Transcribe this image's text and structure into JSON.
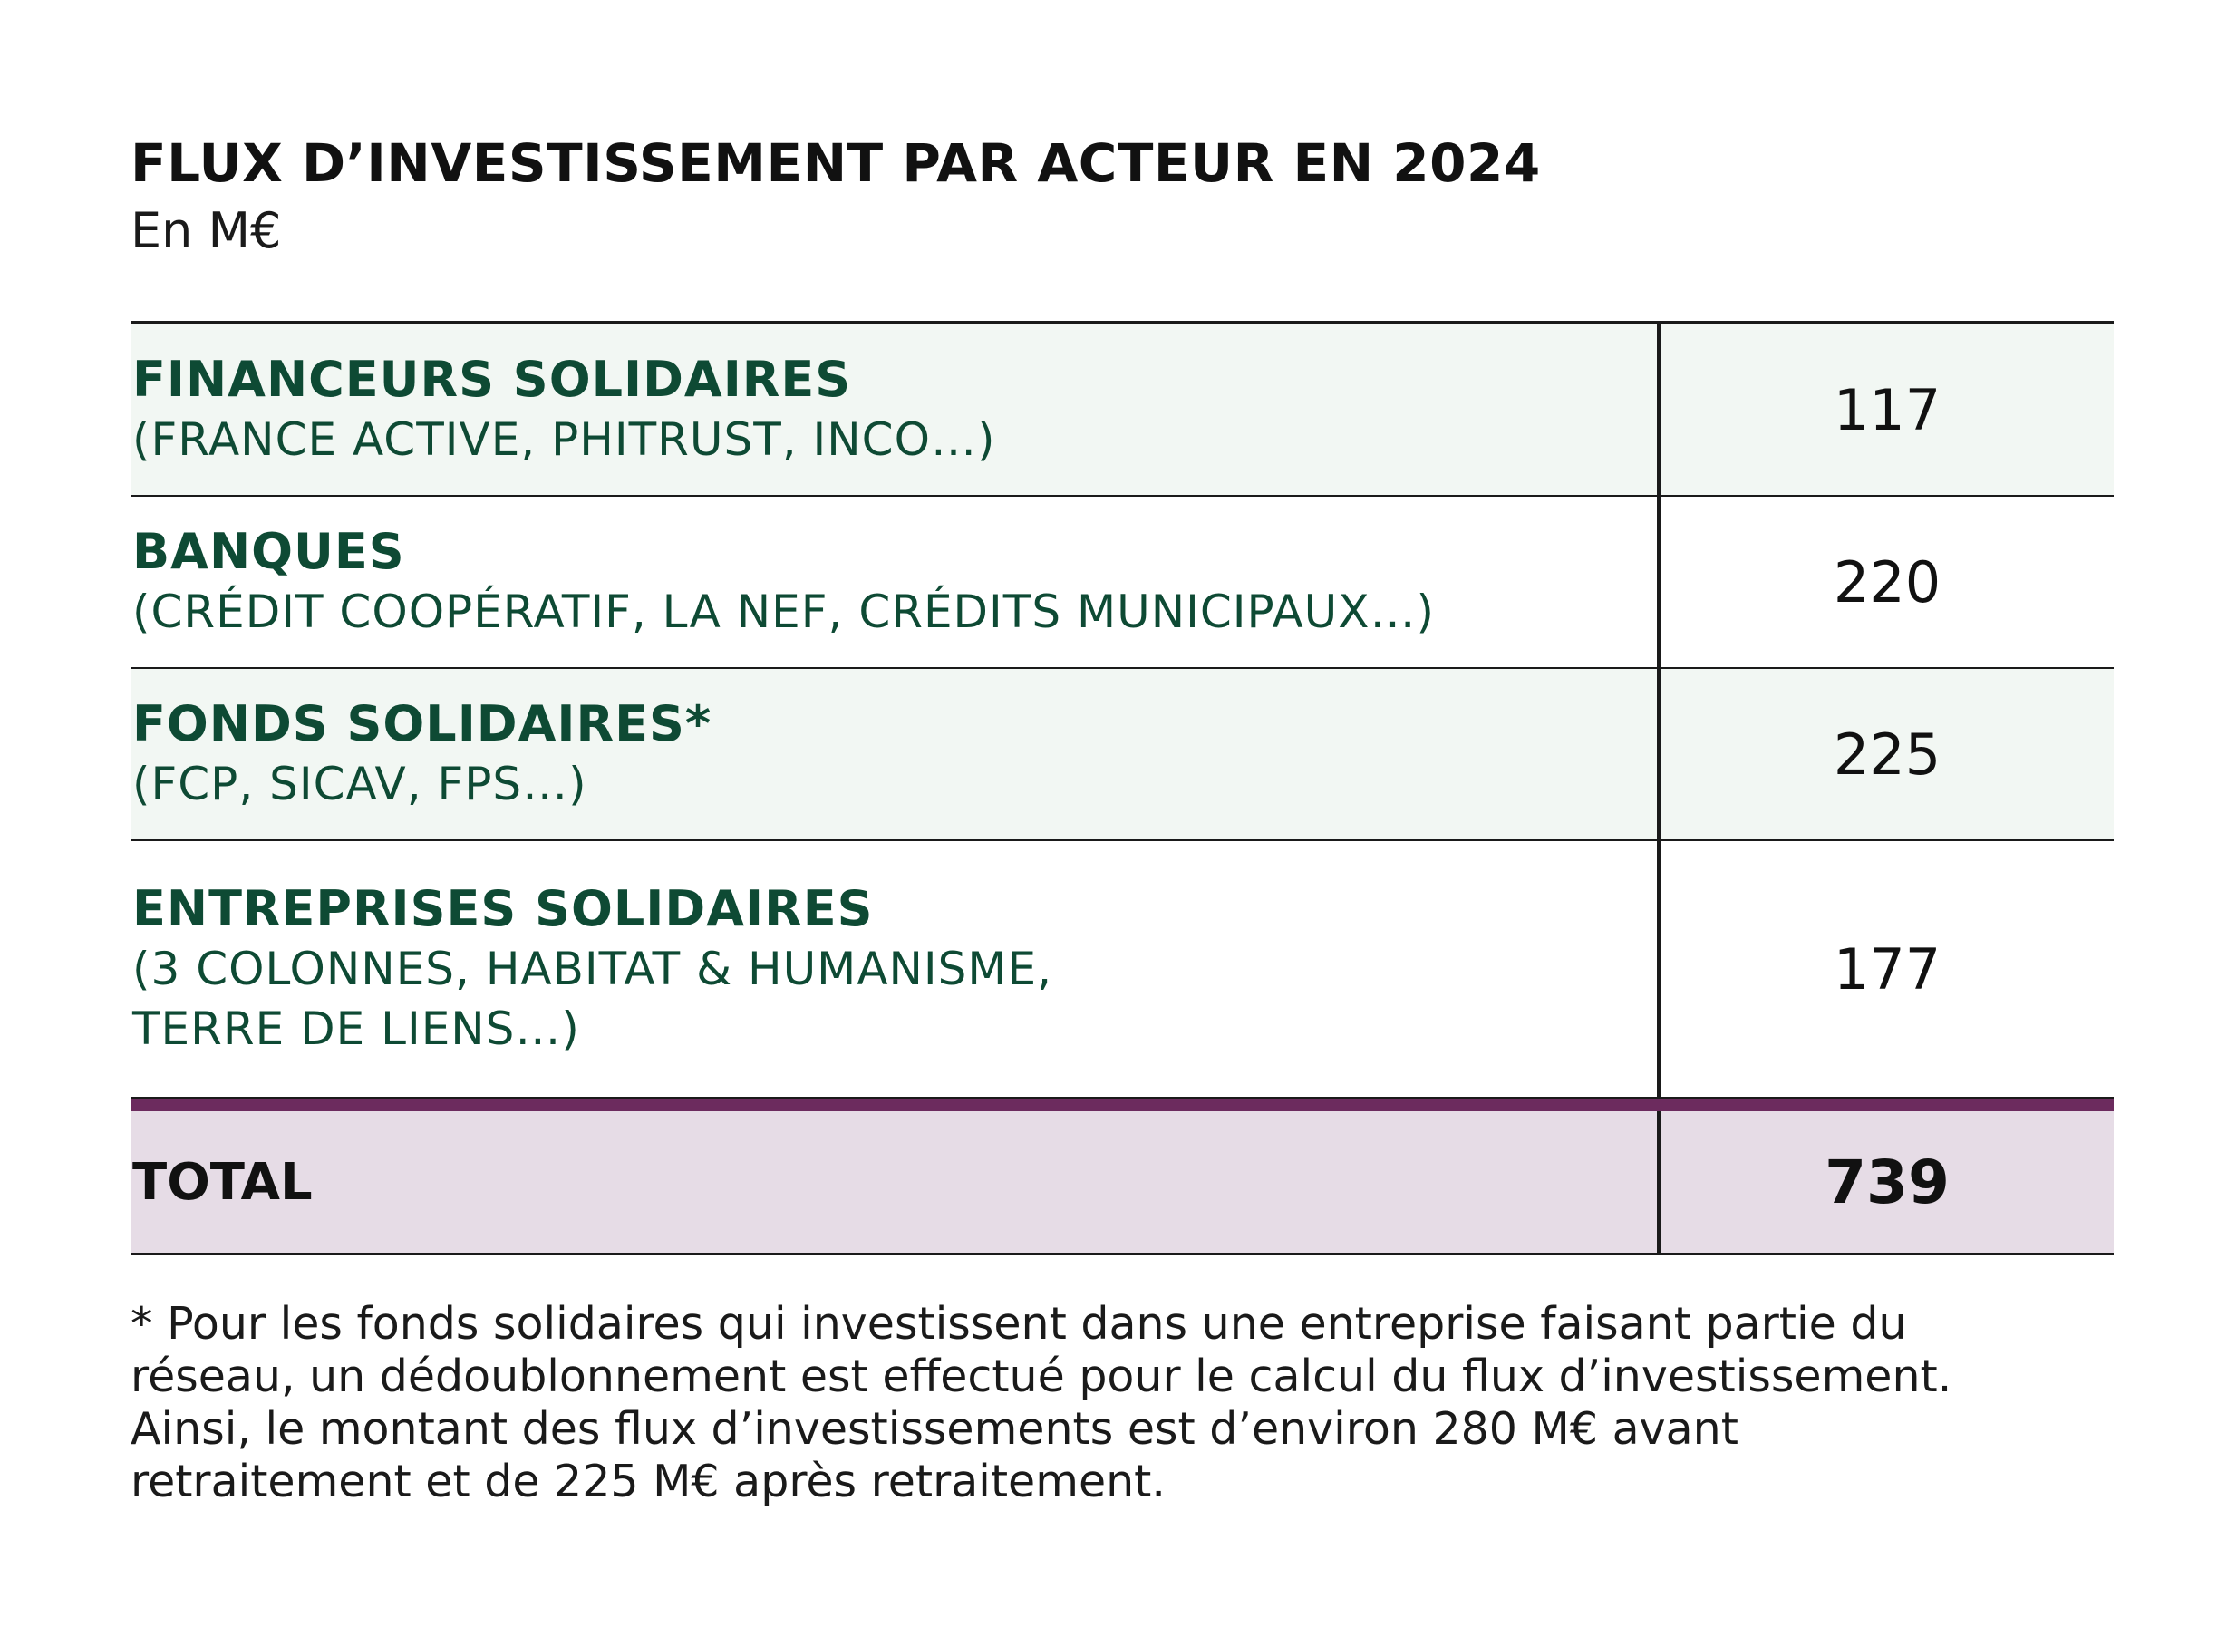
{
  "chart_data": {
    "type": "table",
    "title": "FLUX D’INVESTISSEMENT PAR ACTEUR EN 2024",
    "subtitle": "En M€",
    "rows": [
      {
        "category": "FINANCEURS SOLIDAIRES",
        "detail_lines": [
          "(FRANCE ACTIVE, PHITRUST, INCO…)"
        ],
        "value": 117
      },
      {
        "category": "BANQUES",
        "detail_lines": [
          "(CRÉDIT COOPÉRATIF, LA NEF, CRÉDITS MUNICIPAUX…)"
        ],
        "value": 220
      },
      {
        "category": "FONDS SOLIDAIRES*",
        "detail_lines": [
          "(FCP, SICAV, FPS…)"
        ],
        "value": 225
      },
      {
        "category": "ENTREPRISES SOLIDAIRES",
        "detail_lines": [
          "(3 COLONNES, HABITAT & HUMANISME,",
          "TERRE DE LIENS…)"
        ],
        "value": 177
      }
    ],
    "total": {
      "label": "TOTAL",
      "value": 739
    },
    "footnote_lines": [
      "* Pour les fonds solidaires qui investissent dans une entreprise faisant partie du",
      "réseau, un dédoublonnement est effectué pour le calcul du flux d’investissement.",
      "Ainsi, le montant des flux d’investissements est d’environ 280 M€ avant",
      "retraitement et de 225 M€ après retraitement."
    ]
  },
  "colors": {
    "category_text": "#0e4a34",
    "shaded_row": "#f2f7f3",
    "total_accent": "#6c2b5e",
    "total_background": "#e6dce6"
  }
}
